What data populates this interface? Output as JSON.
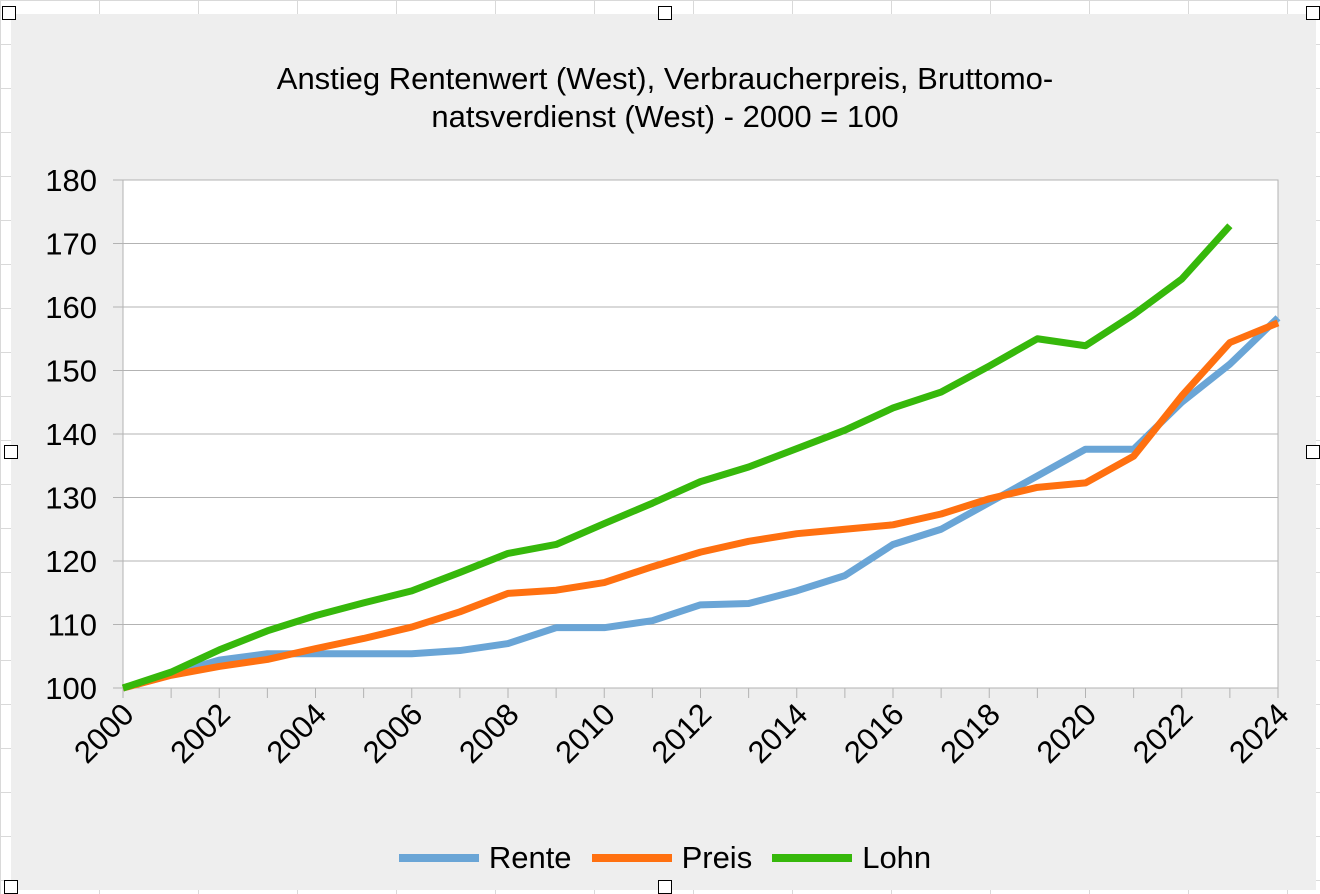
{
  "chart_data": {
    "type": "line",
    "title_lines": [
      "Anstieg Rentenwert (West), Verbraucherpreis, Bruttomo-",
      "natsverdienst (West) - 2000 = 100"
    ],
    "xlabel": "",
    "ylabel": "",
    "ylim": [
      100,
      180
    ],
    "yticks": [
      100,
      110,
      120,
      130,
      140,
      150,
      160,
      170,
      180
    ],
    "x": [
      2000,
      2001,
      2002,
      2003,
      2004,
      2005,
      2006,
      2007,
      2008,
      2009,
      2010,
      2011,
      2012,
      2013,
      2014,
      2015,
      2016,
      2017,
      2018,
      2019,
      2020,
      2021,
      2022,
      2023,
      2024
    ],
    "xticks": [
      "2000",
      "2002",
      "2004",
      "2006",
      "2008",
      "2010",
      "2012",
      "2014",
      "2016",
      "2018",
      "2020",
      "2022",
      "2024"
    ],
    "grid": "horizontal",
    "legend_position": "bottom",
    "series": [
      {
        "name": "Rente",
        "color": "#6aa5d6",
        "values": [
          100,
          102.2,
          104.4,
          105.4,
          105.4,
          105.4,
          105.4,
          105.9,
          107.0,
          109.5,
          109.5,
          110.6,
          113.1,
          113.3,
          115.3,
          117.7,
          122.6,
          125.0,
          129.2,
          133.4,
          137.6,
          137.6,
          145.0,
          151.0,
          158.3
        ]
      },
      {
        "name": "Preis",
        "color": "#ff7010",
        "values": [
          100,
          102.0,
          103.4,
          104.5,
          106.2,
          107.8,
          109.6,
          112.0,
          114.9,
          115.4,
          116.6,
          119.1,
          121.4,
          123.1,
          124.3,
          125.0,
          125.7,
          127.4,
          129.8,
          131.6,
          132.3,
          136.5,
          146.0,
          154.4,
          157.5
        ]
      },
      {
        "name": "Lohn",
        "color": "#36b80b",
        "values": [
          100,
          102.5,
          106.0,
          109.0,
          111.4,
          113.4,
          115.3,
          118.2,
          121.2,
          122.6,
          125.9,
          129.1,
          132.5,
          134.8,
          137.7,
          140.6,
          144.1,
          146.6,
          150.7,
          155.0,
          153.9,
          158.8,
          164.4,
          172.8,
          null
        ]
      }
    ]
  }
}
